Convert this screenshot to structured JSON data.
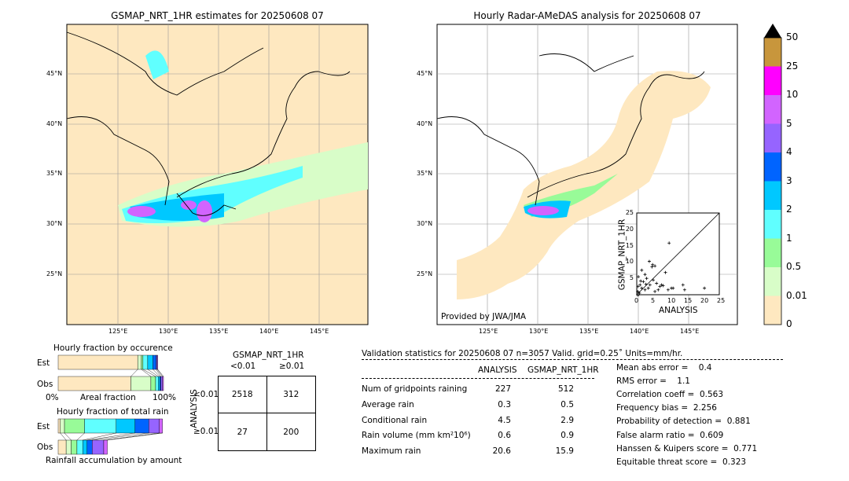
{
  "left_map": {
    "title": "GSMAP_NRT_1HR estimates for 20250608 07",
    "lat_ticks": [
      "45°N",
      "40°N",
      "35°N",
      "30°N",
      "25°N"
    ],
    "lon_ticks": [
      "125°E",
      "130°E",
      "135°E",
      "140°E",
      "145°E"
    ]
  },
  "right_map": {
    "title": "Hourly Radar-AMeDAS analysis for 20250608 07",
    "lat_ticks": [
      "45°N",
      "40°N",
      "35°N",
      "30°N",
      "25°N"
    ],
    "lon_ticks": [
      "125°E",
      "130°E",
      "135°E",
      "140°E",
      "145°E"
    ],
    "credit": "Provided by JWA/JMA"
  },
  "colorbar": {
    "labels": [
      "50",
      "25",
      "10",
      "5",
      "4",
      "3",
      "2",
      "1",
      "0.5",
      "0.01",
      "0"
    ],
    "colors": [
      "#c8963c",
      "#ff00ff",
      "#d264ff",
      "#9664ff",
      "#0064ff",
      "#00c8ff",
      "#60ffff",
      "#98fb98",
      "#d8fdc8",
      "#fee8c0"
    ]
  },
  "occurrence": {
    "title": "Hourly fraction by occurence",
    "est_label": "Est",
    "obs_label": "Obs",
    "x_left": "0%",
    "x_mid": "Areal fraction",
    "x_right": "100%"
  },
  "total_rain": {
    "title": "Hourly fraction of total rain",
    "est_label": "Est",
    "obs_label": "Obs",
    "xlabel": "Rainfall accumulation by amount"
  },
  "contingency": {
    "title": "GSMAP_NRT_1HR",
    "col1": "<0.01",
    "col2": "≥0.01",
    "row_title": "ANALYSIS",
    "row1": "<0.01",
    "row2": "≥0.01",
    "cells": [
      "2518",
      "312",
      "27",
      "200"
    ]
  },
  "stats": {
    "header": "Validation statistics for 20250608 07  n=3057 Valid. grid=0.25˚ Units=mm/hr.",
    "col1": "ANALYSIS",
    "col2": "GSMAP_NRT_1HR",
    "rows": [
      {
        "label": "Num of gridpoints raining",
        "a": "227",
        "g": "512"
      },
      {
        "label": "Average rain",
        "a": "0.3",
        "g": "0.5"
      },
      {
        "label": "Conditional rain",
        "a": "4.5",
        "g": "2.9"
      },
      {
        "label": "Rain volume (mm km²10⁶)",
        "a": "0.6",
        "g": "0.9"
      },
      {
        "label": "Maximum rain",
        "a": "20.6",
        "g": "15.9"
      }
    ],
    "scores": [
      "Mean abs error =    0.4",
      "RMS error =    1.1",
      "Correlation coeff =  0.563",
      "Frequency bias =  2.256",
      "Probability of detection =  0.881",
      "False alarm ratio =  0.609",
      "Hanssen & Kuipers score =  0.771",
      "Equitable threat score =  0.323"
    ]
  },
  "chart_data": [
    {
      "type": "scatter",
      "xlabel": "ANALYSIS",
      "ylabel": "GSMAP_NRT_1HR",
      "xlim": [
        0,
        25
      ],
      "ylim": [
        0,
        25
      ],
      "ticks": [
        "0",
        "5",
        "10",
        "15",
        "20",
        "25"
      ],
      "points": [
        [
          9.8,
          15.8
        ],
        [
          3.8,
          10.2
        ],
        [
          4.8,
          9.2
        ],
        [
          5.5,
          8.8
        ],
        [
          4.6,
          8.5
        ],
        [
          8.7,
          6.8
        ],
        [
          1.5,
          7.5
        ],
        [
          2.5,
          6.2
        ],
        [
          14,
          3
        ],
        [
          14.5,
          1.5
        ],
        [
          20.5,
          2
        ],
        [
          10.5,
          2
        ],
        [
          11,
          2
        ],
        [
          9.5,
          1.5
        ],
        [
          7,
          2.5
        ],
        [
          6,
          3.5
        ],
        [
          5,
          4.5
        ],
        [
          3,
          5
        ],
        [
          2,
          4
        ],
        [
          1,
          3
        ],
        [
          0.5,
          5.5
        ],
        [
          1.5,
          2
        ],
        [
          0.3,
          1
        ],
        [
          2.5,
          1.5
        ],
        [
          4,
          3
        ],
        [
          3.5,
          2
        ],
        [
          6.5,
          1.5
        ],
        [
          8,
          2.8
        ],
        [
          0.8,
          0.5
        ],
        [
          1.2,
          4.2
        ],
        [
          2.8,
          3.2
        ],
        [
          0.4,
          2.5
        ],
        [
          5.5,
          1
        ],
        [
          7.5,
          3
        ]
      ]
    },
    {
      "type": "bar",
      "name": "occurrence",
      "est": [
        0.755,
        0.035,
        0.015,
        0.045,
        0.05,
        0.03,
        0.01,
        0.005
      ],
      "obs": [
        0.69,
        0.19,
        0.045,
        0.025,
        0.015,
        0.01,
        0.015,
        0.01
      ]
    },
    {
      "type": "bar",
      "name": "total_rain",
      "est": [
        0.02,
        0.04,
        0.19,
        0.3,
        0.18,
        0.13,
        0.1,
        0.03
      ],
      "obs": [
        0.11,
        0.07,
        0.08,
        0.08,
        0.06,
        0.07,
        0.16,
        0.05
      ]
    }
  ]
}
